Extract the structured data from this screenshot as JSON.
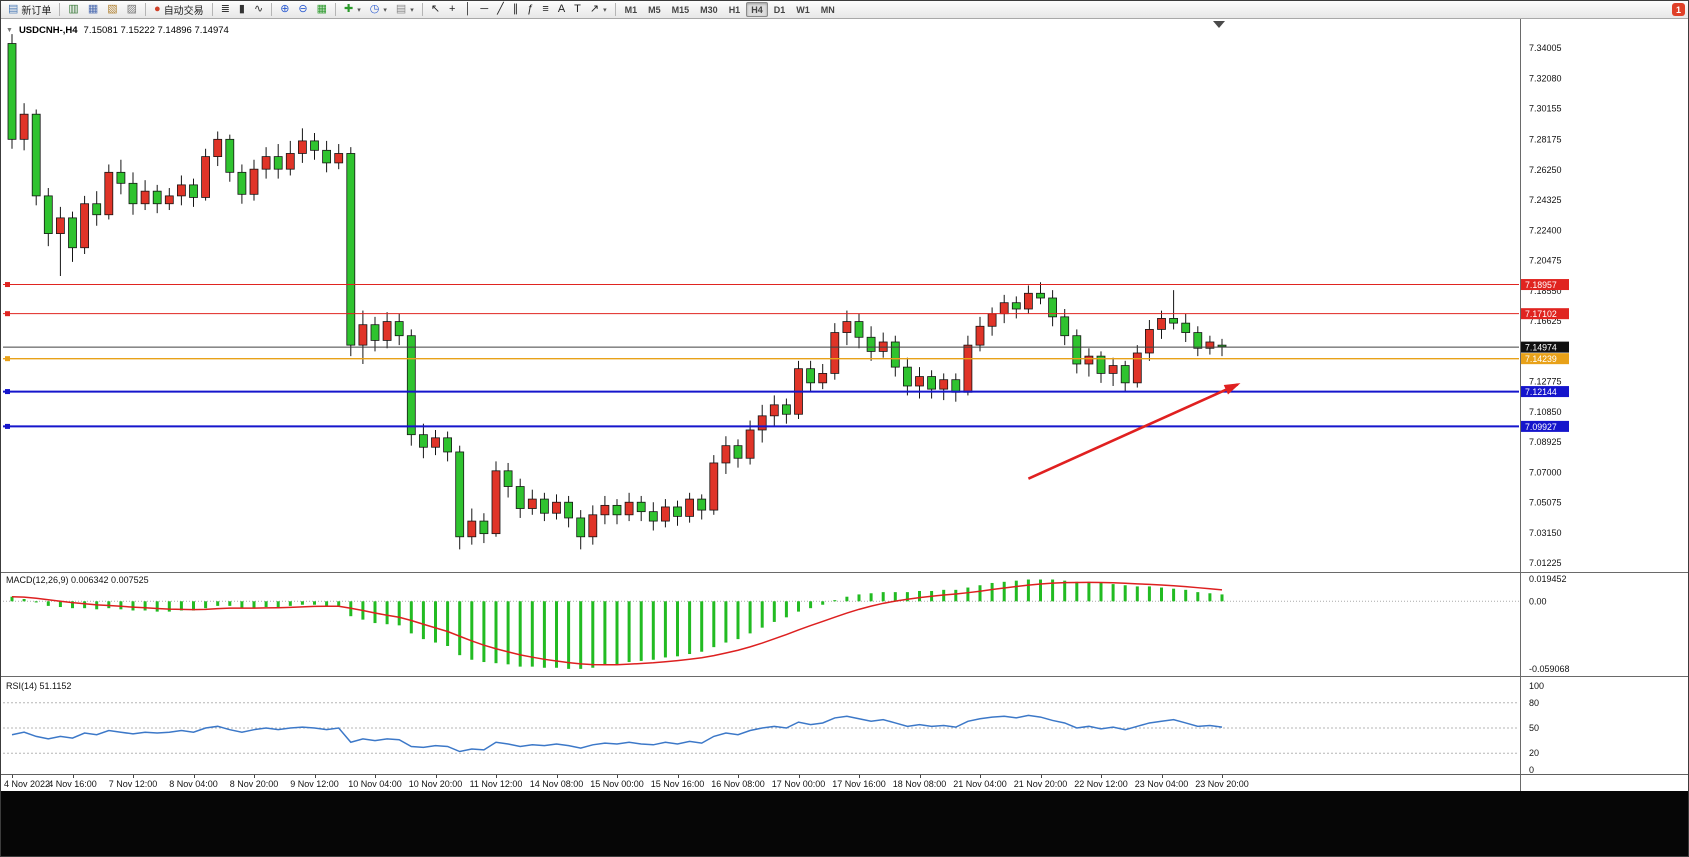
{
  "icons": {
    "collapse_caret": "▼",
    "caret_down": "▾"
  },
  "title": {
    "symbol": "USDCNH-,H4",
    "ohlc": "7.15081 7.15222 7.14896 7.14974"
  },
  "toolbar": {
    "groups": [
      [
        {
          "name": "new-order-button",
          "icon": "▤",
          "icon_color": "#4a7ab5",
          "label": "新订单"
        }
      ],
      [
        {
          "name": "market-watch-button",
          "icon": "▥",
          "icon_color": "#3a7a3a"
        },
        {
          "name": "data-window-button",
          "icon": "▦",
          "icon_color": "#4a6ab0"
        },
        {
          "name": "navigator-button",
          "icon": "▧",
          "icon_color": "#b08030"
        },
        {
          "name": "terminal-button",
          "icon": "▨",
          "icon_color": "#777777"
        }
      ],
      [
        {
          "name": "autotrading-button",
          "icon": "●",
          "icon_color": "#d04028",
          "label": "自动交易"
        }
      ],
      [
        {
          "name": "bar-chart-button",
          "icon": "≣",
          "icon_color": "#333333"
        },
        {
          "name": "candle-chart-button",
          "icon": "▮",
          "icon_color": "#333333"
        },
        {
          "name": "line-chart-button",
          "icon": "∿",
          "icon_color": "#333333"
        }
      ],
      [
        {
          "name": "zoom-in-button",
          "icon": "⊕",
          "icon_color": "#2a5ad0"
        },
        {
          "name": "zoom-out-button",
          "icon": "⊖",
          "icon_color": "#2a5ad0"
        },
        {
          "name": "tile-windows-button",
          "icon": "▦",
          "icon_color": "#2a9a2a"
        }
      ],
      [
        {
          "name": "indicators-button",
          "icon": "✚",
          "icon_color": "#2a9a2a",
          "caret": true
        },
        {
          "name": "periods-button",
          "icon": "◷",
          "icon_color": "#2a5ad0",
          "caret": true
        },
        {
          "name": "templates-button",
          "icon": "▤",
          "icon_color": "#888888",
          "caret": true
        }
      ],
      [
        {
          "name": "cursor-button",
          "icon": "↖",
          "icon_color": "#222222"
        },
        {
          "name": "crosshair-button",
          "icon": "+",
          "icon_color": "#222222"
        },
        {
          "name": "vertical-line-button",
          "icon": "│",
          "icon_color": "#222222"
        },
        {
          "name": "horizontal-line-button",
          "icon": "─",
          "icon_color": "#222222"
        },
        {
          "name": "trendline-button",
          "icon": "╱",
          "icon_color": "#222222"
        },
        {
          "name": "channel-button",
          "icon": "∥",
          "icon_color": "#222222"
        },
        {
          "name": "fibonacci-button",
          "icon": "ƒ",
          "icon_color": "#222222"
        },
        {
          "name": "shapes-button",
          "icon": "≡",
          "icon_color": "#222222"
        },
        {
          "name": "text-button",
          "icon": "A",
          "icon_color": "#222222"
        },
        {
          "name": "label-button",
          "icon": "T",
          "icon_color": "#222222"
        },
        {
          "name": "arrows-button",
          "icon": "↗",
          "icon_color": "#222222",
          "caret": true
        }
      ],
      [
        {
          "name": "tf-m1-button",
          "tf": "M1"
        },
        {
          "name": "tf-m5-button",
          "tf": "M5"
        },
        {
          "name": "tf-m15-button",
          "tf": "M15"
        },
        {
          "name": "tf-m30-button",
          "tf": "M30"
        },
        {
          "name": "tf-h1-button",
          "tf": "H1"
        },
        {
          "name": "tf-h4-button",
          "tf": "H4",
          "active": true
        },
        {
          "name": "tf-d1-button",
          "tf": "D1"
        },
        {
          "name": "tf-w1-button",
          "tf": "W1"
        },
        {
          "name": "tf-mn-button",
          "tf": "MN"
        }
      ]
    ],
    "right_buttons": [
      {
        "name": "notifications-button",
        "badge": "1"
      }
    ]
  },
  "chart_data": {
    "type": "candlestick",
    "symbol": "USDCNH-",
    "timeframe": "H4",
    "ohlc_display": {
      "open": "7.15081",
      "high": "7.15222",
      "low": "7.14896",
      "close": "7.14974"
    },
    "ylim": [
      7.0085,
      7.3535
    ],
    "bars_per_label": 5,
    "colors": {
      "up": "#e03428",
      "down": "#2fc32f",
      "wick": "#151515"
    },
    "price_axis_ticks": [
      "7.34005",
      "7.32080",
      "7.30155",
      "7.28175",
      "7.26250",
      "7.24325",
      "7.22400",
      "7.20475",
      "7.18550",
      "7.16625",
      "7.12775",
      "7.10850",
      "7.08925",
      "7.07000",
      "7.05075",
      "7.03150",
      "7.01225"
    ],
    "x_labels": [
      "4 Nov 2022",
      "4 Nov 16:00",
      "7 Nov 12:00",
      "8 Nov 04:00",
      "8 Nov 20:00",
      "9 Nov 12:00",
      "10 Nov 04:00",
      "10 Nov 20:00",
      "11 Nov 12:00",
      "14 Nov 08:00",
      "15 Nov 00:00",
      "15 Nov 16:00",
      "16 Nov 08:00",
      "17 Nov 00:00",
      "17 Nov 16:00",
      "18 Nov 08:00",
      "21 Nov 04:00",
      "21 Nov 20:00",
      "22 Nov 12:00",
      "23 Nov 04:00",
      "23 Nov 20:00"
    ],
    "candles": [
      [
        7.343,
        7.349,
        7.276,
        7.282
      ],
      [
        7.282,
        7.305,
        7.275,
        7.298
      ],
      [
        7.298,
        7.301,
        7.24,
        7.246
      ],
      [
        7.246,
        7.251,
        7.214,
        7.222
      ],
      [
        7.222,
        7.239,
        7.195,
        7.232
      ],
      [
        7.232,
        7.236,
        7.204,
        7.213
      ],
      [
        7.213,
        7.246,
        7.209,
        7.241
      ],
      [
        7.241,
        7.249,
        7.227,
        7.234
      ],
      [
        7.234,
        7.266,
        7.231,
        7.261
      ],
      [
        7.261,
        7.269,
        7.247,
        7.254
      ],
      [
        7.254,
        7.261,
        7.234,
        7.241
      ],
      [
        7.241,
        7.256,
        7.237,
        7.249
      ],
      [
        7.249,
        7.253,
        7.235,
        7.241
      ],
      [
        7.241,
        7.251,
        7.237,
        7.246
      ],
      [
        7.246,
        7.259,
        7.24,
        7.253
      ],
      [
        7.253,
        7.257,
        7.239,
        7.245
      ],
      [
        7.245,
        7.276,
        7.243,
        7.271
      ],
      [
        7.271,
        7.287,
        7.265,
        7.282
      ],
      [
        7.282,
        7.285,
        7.255,
        7.261
      ],
      [
        7.261,
        7.266,
        7.241,
        7.247
      ],
      [
        7.247,
        7.269,
        7.243,
        7.263
      ],
      [
        7.263,
        7.277,
        7.257,
        7.271
      ],
      [
        7.271,
        7.279,
        7.257,
        7.263
      ],
      [
        7.263,
        7.281,
        7.259,
        7.273
      ],
      [
        7.273,
        7.289,
        7.267,
        7.281
      ],
      [
        7.281,
        7.286,
        7.269,
        7.275
      ],
      [
        7.275,
        7.281,
        7.261,
        7.267
      ],
      [
        7.267,
        7.279,
        7.263,
        7.273
      ],
      [
        7.273,
        7.277,
        7.144,
        7.151
      ],
      [
        7.151,
        7.173,
        7.139,
        7.164
      ],
      [
        7.164,
        7.169,
        7.147,
        7.154
      ],
      [
        7.154,
        7.172,
        7.149,
        7.166
      ],
      [
        7.166,
        7.171,
        7.151,
        7.157
      ],
      [
        7.157,
        7.161,
        7.087,
        7.094
      ],
      [
        7.094,
        7.101,
        7.079,
        7.086
      ],
      [
        7.086,
        7.097,
        7.081,
        7.092
      ],
      [
        7.092,
        7.096,
        7.077,
        7.083
      ],
      [
        7.083,
        7.087,
        7.021,
        7.029
      ],
      [
        7.029,
        7.047,
        7.024,
        7.039
      ],
      [
        7.039,
        7.044,
        7.025,
        7.031
      ],
      [
        7.031,
        7.077,
        7.029,
        7.071
      ],
      [
        7.071,
        7.076,
        7.054,
        7.061
      ],
      [
        7.061,
        7.066,
        7.041,
        7.047
      ],
      [
        7.047,
        7.059,
        7.043,
        7.053
      ],
      [
        7.053,
        7.057,
        7.039,
        7.044
      ],
      [
        7.044,
        7.056,
        7.04,
        7.051
      ],
      [
        7.051,
        7.055,
        7.035,
        7.041
      ],
      [
        7.041,
        7.046,
        7.021,
        7.029
      ],
      [
        7.029,
        7.049,
        7.024,
        7.043
      ],
      [
        7.043,
        7.055,
        7.037,
        7.049
      ],
      [
        7.049,
        7.053,
        7.037,
        7.043
      ],
      [
        7.043,
        7.057,
        7.039,
        7.051
      ],
      [
        7.051,
        7.055,
        7.039,
        7.045
      ],
      [
        7.045,
        7.051,
        7.033,
        7.039
      ],
      [
        7.039,
        7.053,
        7.035,
        7.048
      ],
      [
        7.048,
        7.052,
        7.036,
        7.042
      ],
      [
        7.042,
        7.057,
        7.038,
        7.053
      ],
      [
        7.053,
        7.056,
        7.04,
        7.046
      ],
      [
        7.046,
        7.081,
        7.043,
        7.076
      ],
      [
        7.076,
        7.093,
        7.069,
        7.087
      ],
      [
        7.087,
        7.091,
        7.073,
        7.079
      ],
      [
        7.079,
        7.103,
        7.075,
        7.097
      ],
      [
        7.097,
        7.113,
        7.089,
        7.106
      ],
      [
        7.106,
        7.119,
        7.099,
        7.113
      ],
      [
        7.113,
        7.117,
        7.101,
        7.107
      ],
      [
        7.107,
        7.141,
        7.104,
        7.136
      ],
      [
        7.136,
        7.141,
        7.121,
        7.127
      ],
      [
        7.127,
        7.139,
        7.123,
        7.133
      ],
      [
        7.133,
        7.165,
        7.129,
        7.159
      ],
      [
        7.159,
        7.173,
        7.151,
        7.166
      ],
      [
        7.166,
        7.171,
        7.149,
        7.156
      ],
      [
        7.156,
        7.163,
        7.141,
        7.147
      ],
      [
        7.147,
        7.159,
        7.143,
        7.153
      ],
      [
        7.153,
        7.157,
        7.131,
        7.137
      ],
      [
        7.137,
        7.143,
        7.119,
        7.125
      ],
      [
        7.125,
        7.137,
        7.117,
        7.131
      ],
      [
        7.131,
        7.135,
        7.117,
        7.123
      ],
      [
        7.123,
        7.133,
        7.116,
        7.129
      ],
      [
        7.129,
        7.133,
        7.115,
        7.121
      ],
      [
        7.121,
        7.157,
        7.119,
        7.151
      ],
      [
        7.151,
        7.169,
        7.147,
        7.163
      ],
      [
        7.163,
        7.175,
        7.157,
        7.171
      ],
      [
        7.171,
        7.183,
        7.165,
        7.178
      ],
      [
        7.178,
        7.182,
        7.168,
        7.174
      ],
      [
        7.174,
        7.189,
        7.171,
        7.184
      ],
      [
        7.184,
        7.191,
        7.177,
        7.181
      ],
      [
        7.181,
        7.186,
        7.163,
        7.169
      ],
      [
        7.169,
        7.174,
        7.151,
        7.157
      ],
      [
        7.157,
        7.161,
        7.133,
        7.139
      ],
      [
        7.139,
        7.149,
        7.131,
        7.144
      ],
      [
        7.144,
        7.147,
        7.127,
        7.133
      ],
      [
        7.133,
        7.143,
        7.125,
        7.138
      ],
      [
        7.138,
        7.141,
        7.121,
        7.127
      ],
      [
        7.127,
        7.151,
        7.124,
        7.146
      ],
      [
        7.146,
        7.167,
        7.141,
        7.161
      ],
      [
        7.161,
        7.173,
        7.155,
        7.168
      ],
      [
        7.168,
        7.186,
        7.161,
        7.165
      ],
      [
        7.165,
        7.171,
        7.153,
        7.159
      ],
      [
        7.159,
        7.163,
        7.144,
        7.149
      ],
      [
        7.149,
        7.157,
        7.145,
        7.153
      ],
      [
        7.151,
        7.155,
        7.144,
        7.15
      ]
    ],
    "hlines": [
      {
        "name": "resistance-line-1",
        "price": 7.18957,
        "label": "7.18957",
        "color": "#e02420",
        "label_bg": "#e02420",
        "width": 1,
        "marker": true
      },
      {
        "name": "resistance-line-2",
        "price": 7.17102,
        "label": "7.17102",
        "color": "#e02420",
        "label_bg": "#e02420",
        "width": 1,
        "marker": true
      },
      {
        "name": "current-price-line",
        "price": 7.14974,
        "label": "7.14974",
        "color": "#404040",
        "label_bg": "#101010",
        "width": 1,
        "marker": false
      },
      {
        "name": "orange-level-line",
        "price": 7.14239,
        "label": "7.14239",
        "color": "#e8a118",
        "label_bg": "#e8a118",
        "width": 1.4,
        "marker": true
      },
      {
        "name": "support-line-1",
        "price": 7.12144,
        "label": "7.12144",
        "color": "#1515cc",
        "label_bg": "#1515cc",
        "width": 2,
        "marker": true
      },
      {
        "name": "support-line-2",
        "price": 7.09927,
        "label": "7.09927",
        "color": "#1515cc",
        "label_bg": "#1515cc",
        "width": 2,
        "marker": true
      }
    ],
    "arrow_annotation": {
      "from_bar": 84,
      "from_price": 7.066,
      "to_bar": 101.3,
      "to_price": 7.126,
      "color": "#e02020"
    },
    "indicators": [
      {
        "name": "MACD",
        "display": "MACD(12,26,9) 0.006342 0.007525",
        "type": "histogram+signal",
        "ylim": [
          -0.059068,
          0.019452
        ],
        "axis_ticks": [
          "0.019452",
          "0.00",
          "-0.059068"
        ],
        "signal_period": 9,
        "histogram_color": "#22bb22",
        "signal_color": "#dd2020",
        "histogram": [
          0.004,
          0.002,
          -0.001,
          -0.004,
          -0.005,
          -0.006,
          -0.006,
          -0.007,
          -0.006,
          -0.007,
          -0.008,
          -0.008,
          -0.009,
          -0.009,
          -0.008,
          -0.008,
          -0.006,
          -0.004,
          -0.004,
          -0.006,
          -0.006,
          -0.005,
          -0.005,
          -0.004,
          -0.003,
          -0.003,
          -0.004,
          -0.004,
          -0.013,
          -0.016,
          -0.019,
          -0.02,
          -0.021,
          -0.028,
          -0.033,
          -0.036,
          -0.039,
          -0.047,
          -0.051,
          -0.053,
          -0.054,
          -0.055,
          -0.057,
          -0.057,
          -0.058,
          -0.058,
          -0.059,
          -0.059,
          -0.058,
          -0.056,
          -0.055,
          -0.053,
          -0.052,
          -0.051,
          -0.049,
          -0.048,
          -0.046,
          -0.044,
          -0.04,
          -0.036,
          -0.033,
          -0.028,
          -0.023,
          -0.018,
          -0.014,
          -0.009,
          -0.006,
          -0.003,
          0.001,
          0.004,
          0.006,
          0.007,
          0.008,
          0.008,
          0.008,
          0.009,
          0.009,
          0.01,
          0.01,
          0.012,
          0.014,
          0.016,
          0.017,
          0.018,
          0.019,
          0.019,
          0.019,
          0.018,
          0.017,
          0.017,
          0.016,
          0.015,
          0.014,
          0.013,
          0.013,
          0.012,
          0.011,
          0.01,
          0.008,
          0.007,
          0.006
        ]
      },
      {
        "name": "RSI",
        "display": "RSI(14) 51.1152",
        "type": "line",
        "ylim": [
          0,
          100
        ],
        "axis_ticks": [
          "100",
          "80",
          "50",
          "20",
          "0"
        ],
        "levels": [
          80,
          50,
          20
        ],
        "line_color": "#3c78c8",
        "values": [
          42,
          45,
          40,
          37,
          40,
          38,
          44,
          42,
          47,
          45,
          43,
          45,
          44,
          45,
          47,
          45,
          50,
          52,
          48,
          45,
          48,
          50,
          48,
          50,
          51,
          50,
          48,
          50,
          33,
          37,
          35,
          37,
          36,
          28,
          27,
          29,
          28,
          22,
          25,
          24,
          33,
          31,
          28,
          30,
          29,
          31,
          29,
          26,
          30,
          32,
          31,
          33,
          31,
          30,
          33,
          31,
          34,
          32,
          40,
          44,
          42,
          47,
          50,
          52,
          50,
          57,
          54,
          56,
          62,
          64,
          61,
          58,
          60,
          56,
          52,
          54,
          52,
          53,
          51,
          58,
          61,
          63,
          64,
          62,
          65,
          63,
          59,
          56,
          50,
          52,
          49,
          51,
          48,
          52,
          56,
          58,
          60,
          56,
          52,
          53,
          51.1
        ]
      }
    ]
  }
}
